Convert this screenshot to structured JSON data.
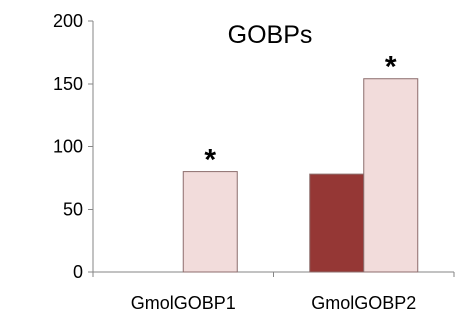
{
  "chart_data": {
    "type": "bar",
    "title": "GOBPs",
    "categories": [
      "GmolGOBP1",
      "GmolGOBP2"
    ],
    "series": [
      {
        "values": [
          0,
          78
        ],
        "color": "#953735"
      },
      {
        "values": [
          80,
          154
        ],
        "color": "#f2dcdb"
      }
    ],
    "annotations": [
      {
        "category": "GmolGOBP1",
        "series_index": 1,
        "text": "*"
      },
      {
        "category": "GmolGOBP2",
        "series_index": 1,
        "text": "*"
      }
    ],
    "ylim": [
      0,
      200
    ],
    "yticks": [
      0,
      50,
      100,
      150,
      200
    ],
    "grid": false,
    "legend": "none",
    "bar_outline_color": "#8c6d6c",
    "axis_color": "#868686"
  }
}
